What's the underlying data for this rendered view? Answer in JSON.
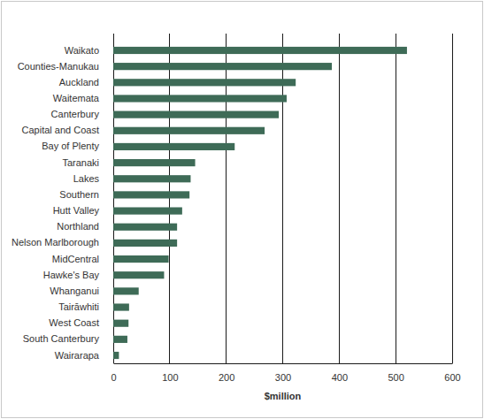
{
  "chart_data": {
    "type": "bar",
    "orientation": "horizontal",
    "x_label": "$million",
    "categories": [
      "Waikato",
      "Counties-Manukau",
      "Auckland",
      "Waitemata",
      "Canterbury",
      "Capital and Coast",
      "Bay of Plenty",
      "Taranaki",
      "Lakes",
      "Southern",
      "Hutt Valley",
      "Northland",
      "Nelson Marlborough",
      "MidCentral",
      "Hawke's Bay",
      "Whanganui",
      "Tairāwhiti",
      "West Coast",
      "South Canterbury",
      "Wairarapa"
    ],
    "values": [
      520,
      387,
      323,
      307,
      293,
      268,
      215,
      145,
      137,
      135,
      122,
      113,
      113,
      98,
      90,
      45,
      28,
      27,
      25,
      10
    ],
    "color": "#3e6b57",
    "xlim": [
      0,
      600
    ],
    "xticks": [
      0,
      100,
      200,
      300,
      400,
      500,
      600
    ],
    "grid": true
  }
}
